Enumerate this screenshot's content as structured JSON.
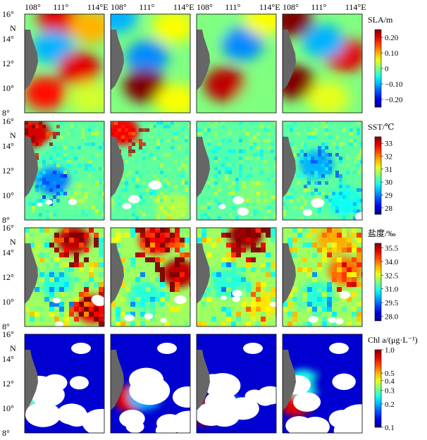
{
  "figure": {
    "columns": 4,
    "longitude_ticks": [
      "108°",
      "111°",
      "114°E"
    ],
    "latitude_ticks": [
      "16°",
      "14°",
      "12°",
      "10°",
      "8°"
    ],
    "latitude_unit": "N",
    "land_color": "#666666"
  },
  "chart_data": [
    {
      "type": "heatmap",
      "variable": "SLA",
      "colorbar_label": "SLA/m",
      "colorbar_ticks": [
        "0.20",
        "0.10",
        "0",
        "−0.10",
        "−0.20"
      ],
      "range": [
        -0.25,
        0.25
      ],
      "colormap": "jet",
      "xlim": [
        108,
        115
      ],
      "ylim": [
        8,
        16
      ],
      "panels": [
        {
          "column": 1,
          "features": [
            {
              "lon": 111.0,
              "lat": 15.6,
              "value": 0.2
            },
            {
              "lon": 113.8,
              "lat": 15.0,
              "value": 0.1
            },
            {
              "lon": 110.5,
              "lat": 13.3,
              "value": -0.1
            },
            {
              "lon": 112.8,
              "lat": 11.6,
              "value": 0.2
            },
            {
              "lon": 109.8,
              "lat": 9.6,
              "value": 0.18
            },
            {
              "lon": 113.8,
              "lat": 9.2,
              "value": 0.04
            }
          ]
        },
        {
          "column": 2,
          "features": [
            {
              "lon": 108.5,
              "lat": 15.8,
              "value": -0.1
            },
            {
              "lon": 111.2,
              "lat": 12.5,
              "value": -0.12
            },
            {
              "lon": 111.0,
              "lat": 10.2,
              "value": 0.25
            },
            {
              "lon": 113.5,
              "lat": 15.0,
              "value": 0.06
            },
            {
              "lon": 113.8,
              "lat": 9.0,
              "value": 0.06
            }
          ]
        },
        {
          "column": 3,
          "features": [
            {
              "lon": 112.0,
              "lat": 13.6,
              "value": -0.12
            },
            {
              "lon": 110.5,
              "lat": 10.3,
              "value": 0.22
            },
            {
              "lon": 109.0,
              "lat": 15.0,
              "value": 0.0
            },
            {
              "lon": 114.0,
              "lat": 15.6,
              "value": 0.06
            },
            {
              "lon": 113.5,
              "lat": 9.0,
              "value": 0.0
            }
          ]
        },
        {
          "column": 4,
          "features": [
            {
              "lon": 108.8,
              "lat": 15.5,
              "value": 0.25
            },
            {
              "lon": 109.0,
              "lat": 10.5,
              "value": 0.25
            },
            {
              "lon": 113.5,
              "lat": 12.7,
              "value": 0.2
            },
            {
              "lon": 111.6,
              "lat": 13.8,
              "value": -0.1
            },
            {
              "lon": 112.0,
              "lat": 9.2,
              "value": 0.05
            }
          ]
        }
      ]
    },
    {
      "type": "heatmap",
      "variable": "SST",
      "colorbar_label": "SST/℃",
      "colorbar_ticks": [
        "33",
        "32",
        "31",
        "30",
        "29",
        "28"
      ],
      "range": [
        27.5,
        33.5
      ],
      "colormap": "jet",
      "xlim": [
        108,
        115
      ],
      "ylim": [
        8,
        16
      ],
      "panels": [
        {
          "column": 1,
          "features": [
            {
              "lon": 108.8,
              "lat": 15.0,
              "value": 33.0
            },
            {
              "lon": 111.0,
              "lat": 13.0,
              "value": 30.2
            },
            {
              "lon": 110.5,
              "lat": 11.2,
              "value": 29.0
            },
            {
              "lon": 113.0,
              "lat": 10.0,
              "value": 30.5
            }
          ]
        },
        {
          "column": 2,
          "features": [
            {
              "lon": 109.0,
              "lat": 15.2,
              "value": 32.8
            },
            {
              "lon": 111.5,
              "lat": 12.0,
              "value": 30.3
            },
            {
              "lon": 113.5,
              "lat": 9.0,
              "value": 30.8
            }
          ]
        },
        {
          "column": 3,
          "features": [
            {
              "lon": 110.5,
              "lat": 13.0,
              "value": 30.2
            },
            {
              "lon": 113.0,
              "lat": 10.0,
              "value": 30.5
            }
          ]
        },
        {
          "column": 4,
          "features": [
            {
              "lon": 111.0,
              "lat": 12.5,
              "value": 29.3
            },
            {
              "lon": 113.5,
              "lat": 9.5,
              "value": 29.8
            }
          ]
        }
      ]
    },
    {
      "type": "heatmap",
      "variable": "salinity",
      "colorbar_label": "盐度/‰",
      "colorbar_ticks": [
        "35.5",
        "34.0",
        "32.5",
        "31.0",
        "29.5",
        "28.0"
      ],
      "range": [
        27.5,
        36
      ],
      "colormap": "jet",
      "xlim": [
        108,
        115
      ],
      "ylim": [
        8,
        16
      ],
      "panels": [
        {
          "column": 1,
          "features": [
            {
              "lon": 112.3,
              "lat": 15.0,
              "value": 35.5
            },
            {
              "lon": 110.8,
              "lat": 11.5,
              "value": 31.0
            },
            {
              "lon": 114.0,
              "lat": 9.4,
              "value": 35.0
            }
          ]
        },
        {
          "column": 2,
          "features": [
            {
              "lon": 112.0,
              "lat": 15.0,
              "value": 35.0
            },
            {
              "lon": 114.0,
              "lat": 12.3,
              "value": 35.5
            },
            {
              "lon": 111.0,
              "lat": 10.5,
              "value": 31.0
            }
          ]
        },
        {
          "column": 3,
          "features": [
            {
              "lon": 112.3,
              "lat": 15.4,
              "value": 35.8
            },
            {
              "lon": 110.8,
              "lat": 11.5,
              "value": 31.0
            },
            {
              "lon": 113.7,
              "lat": 9.8,
              "value": 33.0
            }
          ]
        },
        {
          "column": 4,
          "features": [
            {
              "lon": 112.5,
              "lat": 15.0,
              "value": 33.5
            },
            {
              "lon": 113.5,
              "lat": 12.5,
              "value": 34.0
            },
            {
              "lon": 111.0,
              "lat": 10.5,
              "value": 31.0
            }
          ]
        }
      ]
    },
    {
      "type": "heatmap",
      "variable": "Chl a",
      "colorbar_label": "Chl a/(μg·L⁻¹)",
      "colorbar_ticks": [
        "1.0",
        "0.5",
        "0.4",
        "0.3",
        "0.2",
        "0.1"
      ],
      "range": [
        0.1,
        1.0
      ],
      "scale": "log",
      "colormap": "jet",
      "xlim": [
        108,
        115
      ],
      "ylim": [
        8,
        16
      ],
      "panels": [
        {
          "column": 1,
          "features": [
            {
              "lon": 108.5,
              "lat": 10.8,
              "value": 0.6
            },
            {
              "lon": 109.5,
              "lat": 11.0,
              "value": 0.25
            },
            {
              "lon": 112.0,
              "lat": 13.0,
              "value": 0.12
            }
          ]
        },
        {
          "column": 2,
          "features": [
            {
              "lon": 109.8,
              "lat": 10.8,
              "value": 0.8
            },
            {
              "lon": 111.0,
              "lat": 11.0,
              "value": 0.2
            },
            {
              "lon": 112.0,
              "lat": 13.5,
              "value": 0.12
            }
          ]
        },
        {
          "column": 3,
          "features": [
            {
              "lon": 108.8,
              "lat": 9.8,
              "value": 0.9
            },
            {
              "lon": 110.5,
              "lat": 10.0,
              "value": 0.2
            },
            {
              "lon": 112.0,
              "lat": 13.0,
              "value": 0.12
            }
          ]
        },
        {
          "column": 4,
          "features": [
            {
              "lon": 109.2,
              "lat": 10.5,
              "value": 0.8
            },
            {
              "lon": 109.8,
              "lat": 12.0,
              "value": 0.25
            },
            {
              "lon": 112.0,
              "lat": 12.0,
              "value": 0.12
            }
          ]
        }
      ]
    }
  ]
}
